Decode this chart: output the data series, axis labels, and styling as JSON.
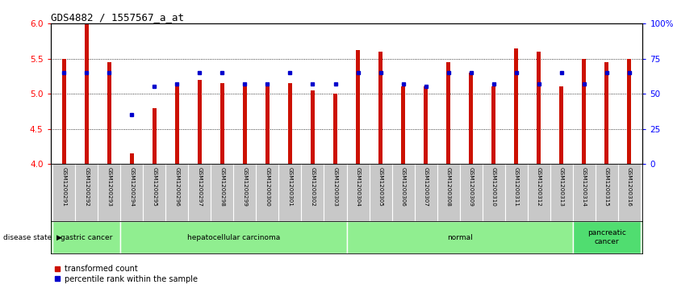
{
  "title": "GDS4882 / 1557567_a_at",
  "samples": [
    "GSM1200291",
    "GSM1200292",
    "GSM1200293",
    "GSM1200294",
    "GSM1200295",
    "GSM1200296",
    "GSM1200297",
    "GSM1200298",
    "GSM1200299",
    "GSM1200300",
    "GSM1200301",
    "GSM1200302",
    "GSM1200303",
    "GSM1200304",
    "GSM1200305",
    "GSM1200306",
    "GSM1200307",
    "GSM1200308",
    "GSM1200309",
    "GSM1200310",
    "GSM1200311",
    "GSM1200312",
    "GSM1200313",
    "GSM1200314",
    "GSM1200315",
    "GSM1200316"
  ],
  "red_values": [
    5.5,
    6.0,
    5.45,
    4.15,
    4.8,
    5.15,
    5.2,
    5.15,
    5.1,
    5.1,
    5.15,
    5.05,
    5.0,
    5.62,
    5.6,
    5.1,
    5.1,
    5.45,
    5.3,
    5.1,
    5.65,
    5.6,
    5.1,
    5.5,
    5.45,
    5.5
  ],
  "blue_values": [
    65,
    65,
    65,
    35,
    55,
    57,
    65,
    65,
    57,
    57,
    65,
    57,
    57,
    65,
    65,
    57,
    55,
    65,
    65,
    57,
    65,
    57,
    65,
    57,
    65,
    65
  ],
  "ylim_left": [
    4.0,
    6.0
  ],
  "ylim_right": [
    0,
    100
  ],
  "yticks_left": [
    4.0,
    4.5,
    5.0,
    5.5,
    6.0
  ],
  "yticks_right": [
    0,
    25,
    50,
    75,
    100
  ],
  "bar_color": "#CC1100",
  "dot_color": "#0000CC",
  "bg_color": "#FFFFFF",
  "tick_area_color": "#C8C8C8",
  "disease_groups": [
    {
      "label": "gastric cancer",
      "start": 0,
      "end": 3,
      "color": "#90EE90"
    },
    {
      "label": "hepatocellular carcinoma",
      "start": 3,
      "end": 13,
      "color": "#90EE90"
    },
    {
      "label": "normal",
      "start": 13,
      "end": 23,
      "color": "#90EE90"
    },
    {
      "label": "pancreatic\ncancer",
      "start": 23,
      "end": 26,
      "color": "#50DD70"
    }
  ],
  "baseline": 4.0
}
